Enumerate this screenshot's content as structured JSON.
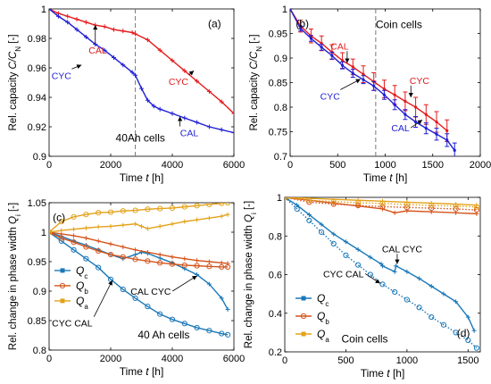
{
  "chart_data": [
    {
      "type": "line",
      "panel_label": "(a)",
      "xlabel_prefix": "Time ",
      "xlabel_var": "t",
      "xlabel_unit": " [h]",
      "ylabel_prefix": "Rel. capacity ",
      "ylabel_var": "C/C",
      "ylabel_sub": "N",
      "ylabel_unit": " [-]",
      "xlim": [
        0,
        6000
      ],
      "ylim": [
        0.9,
        1.0
      ],
      "xticks": [
        0,
        2000,
        4000,
        6000
      ],
      "yticks": [
        0.9,
        0.92,
        0.94,
        0.96,
        0.98,
        1
      ],
      "xtick_labels": [
        "0",
        "2000",
        "4000",
        "6000"
      ],
      "ytick_labels": [
        "0.9",
        "0.92",
        "0.94",
        "0.96",
        "0.98",
        "1"
      ],
      "vline_x": 2800,
      "grid": false,
      "note": "40Ah cells",
      "series": [
        {
          "name": "CAL",
          "color": "#e41a1c",
          "marker": "plus",
          "x": [
            0,
            300,
            600,
            900,
            1200,
            1500,
            1800,
            2100,
            2400,
            2700,
            2800,
            3200,
            3600,
            4000,
            4400,
            4800,
            5200,
            5600,
            6000
          ],
          "y": [
            1.0,
            0.997,
            0.995,
            0.993,
            0.991,
            0.989,
            0.988,
            0.986,
            0.985,
            0.984,
            0.983,
            0.979,
            0.972,
            0.965,
            0.958,
            0.951,
            0.944,
            0.937,
            0.929
          ]
        },
        {
          "name": "CYC",
          "color": "#1f1fd6",
          "marker": "plus",
          "x": [
            0,
            300,
            600,
            900,
            1200,
            1500,
            1800,
            2100,
            2400,
            2700,
            2800,
            3000,
            3200,
            3400,
            3600,
            4000,
            4400,
            4800,
            5200,
            5600,
            6000
          ],
          "y": [
            1.0,
            0.995,
            0.991,
            0.986,
            0.981,
            0.976,
            0.972,
            0.967,
            0.962,
            0.957,
            0.955,
            0.946,
            0.938,
            0.934,
            0.932,
            0.929,
            0.926,
            0.923,
            0.92,
            0.918,
            0.916
          ]
        }
      ],
      "annotations": [
        {
          "text": "CAL",
          "x": 1580,
          "y": 0.972,
          "to_x": 1500,
          "to_y": 0.989,
          "color": "#e41a1c"
        },
        {
          "text": "CYC",
          "x": 4200,
          "y": 0.951,
          "to_x": 4700,
          "to_y": 0.958,
          "color": "#e41a1c"
        },
        {
          "text": "CYC",
          "x": 400,
          "y": 0.955,
          "to_x": 1050,
          "to_y": 0.962,
          "color": "#1f1fd6"
        },
        {
          "text": "CAL",
          "x": 4550,
          "y": 0.916,
          "to_x": 4250,
          "to_y": 0.927,
          "color": "#1f1fd6"
        }
      ]
    },
    {
      "type": "line",
      "panel_label": "(b)",
      "xlabel_prefix": "Time ",
      "xlabel_var": "t",
      "xlabel_unit": " [h]",
      "ylabel_prefix": "Rel. capacity ",
      "ylabel_var": "C/C",
      "ylabel_sub": "N",
      "ylabel_unit": " [-]",
      "xlim": [
        0,
        2000
      ],
      "ylim": [
        0.7,
        1.0
      ],
      "xticks": [
        0,
        500,
        1000,
        1500,
        2000
      ],
      "yticks": [
        0.7,
        0.75,
        0.8,
        0.85,
        0.9,
        0.95,
        1
      ],
      "xtick_labels": [
        "0",
        "500",
        "1000",
        "1500",
        "2000"
      ],
      "ytick_labels": [
        "0.7",
        "0.75",
        "0.8",
        "0.85",
        "0.9",
        "0.95",
        "1"
      ],
      "vline_x": 900,
      "grid": false,
      "note": "Coin cells",
      "series": [
        {
          "name": "CAL",
          "color": "#e41a1c",
          "marker": "errorbar",
          "x": [
            0,
            110,
            220,
            330,
            440,
            550,
            660,
            770,
            880,
            990,
            1100,
            1210,
            1320,
            1430,
            1540,
            1650
          ],
          "y": [
            1.0,
            0.965,
            0.945,
            0.93,
            0.912,
            0.895,
            0.882,
            0.867,
            0.852,
            0.837,
            0.825,
            0.812,
            0.8,
            0.785,
            0.77,
            0.752
          ],
          "err": [
            0.0,
            0.012,
            0.014,
            0.015,
            0.015,
            0.016,
            0.016,
            0.017,
            0.018,
            0.018,
            0.019,
            0.019,
            0.02,
            0.02,
            0.021,
            0.022
          ]
        },
        {
          "name": "CYC",
          "color": "#1f1fd6",
          "marker": "errorbar",
          "x": [
            0,
            110,
            220,
            330,
            440,
            550,
            660,
            770,
            880,
            990,
            1100,
            1210,
            1320,
            1430,
            1540,
            1650,
            1730
          ],
          "y": [
            1.0,
            0.96,
            0.94,
            0.922,
            0.905,
            0.885,
            0.869,
            0.856,
            0.843,
            0.825,
            0.805,
            0.785,
            0.77,
            0.757,
            0.745,
            0.733,
            0.712
          ],
          "err": [
            0.0,
            0.005,
            0.006,
            0.006,
            0.007,
            0.007,
            0.008,
            0.008,
            0.009,
            0.009,
            0.01,
            0.01,
            0.011,
            0.011,
            0.012,
            0.013,
            0.015
          ]
        }
      ],
      "annotations": [
        {
          "text": "CAL",
          "x": 520,
          "y": 0.925,
          "to_x": 600,
          "to_y": 0.89,
          "color": "#e41a1c"
        },
        {
          "text": "CYC",
          "x": 1360,
          "y": 0.855,
          "to_x": 1270,
          "to_y": 0.82,
          "color": "#e41a1c"
        },
        {
          "text": "CYC",
          "x": 420,
          "y": 0.823,
          "to_x": 740,
          "to_y": 0.857,
          "color": "#1f1fd6"
        },
        {
          "text": "CAL",
          "x": 1160,
          "y": 0.758,
          "to_x": 1390,
          "to_y": 0.774,
          "color": "#1f1fd6"
        }
      ]
    },
    {
      "type": "line",
      "panel_label": "(c)",
      "xlabel_prefix": "Time ",
      "xlabel_var": "t",
      "xlabel_unit": " [h]",
      "ylabel_prefix": "Rel. change in phase width ",
      "ylabel_var": "Q",
      "ylabel_sub": "i",
      "ylabel_unit": " [-]",
      "xlim": [
        0,
        6000
      ],
      "ylim": [
        0.8,
        1.05
      ],
      "xticks": [
        0,
        2000,
        4000,
        6000
      ],
      "yticks": [
        0.8,
        0.85,
        0.9,
        0.95,
        1,
        1.05
      ],
      "xtick_labels": [
        "0",
        "2000",
        "4000",
        "6000"
      ],
      "ytick_labels": [
        "0.8",
        "0.85",
        "0.9",
        "0.95",
        "1",
        "1.05"
      ],
      "vline_x": null,
      "grid": false,
      "note": "40 Ah cells",
      "legend": {
        "placement": "left",
        "entries": [
          {
            "var": "Q",
            "sub": "c",
            "color": "#1a78b8",
            "marker": "square"
          },
          {
            "var": "Q",
            "sub": "b",
            "color": "#d4541b",
            "marker": "circle"
          },
          {
            "var": "Q",
            "sub": "a",
            "color": "#e3a21a",
            "marker": "square"
          }
        ]
      },
      "series": [
        {
          "name": "",
          "color": "#1a78b8",
          "marker": "circle",
          "dotted": false,
          "x": [
            0,
            400,
            800,
            1200,
            1600,
            2000,
            2400,
            2800,
            3200,
            3600,
            4000,
            4400,
            4800,
            5200,
            5600,
            5800
          ],
          "y": [
            1.0,
            0.985,
            0.97,
            0.955,
            0.94,
            0.92,
            0.903,
            0.888,
            0.874,
            0.861,
            0.852,
            0.845,
            0.838,
            0.833,
            0.828,
            0.826
          ]
        },
        {
          "name": "",
          "color": "#1a78b8",
          "marker": "plus",
          "dotted": false,
          "x": [
            0,
            400,
            800,
            1200,
            1600,
            2000,
            2400,
            2800,
            3000,
            3200,
            3600,
            4000,
            4400,
            4800,
            5200,
            5600,
            5800
          ],
          "y": [
            1.0,
            0.993,
            0.985,
            0.978,
            0.97,
            0.962,
            0.955,
            0.962,
            0.966,
            0.964,
            0.956,
            0.948,
            0.938,
            0.928,
            0.912,
            0.888,
            0.869
          ]
        },
        {
          "name": "",
          "color": "#d4541b",
          "marker": "circle",
          "dotted": false,
          "x": [
            0,
            400,
            800,
            1200,
            1600,
            2000,
            2400,
            2800,
            3200,
            3600,
            4000,
            4400,
            4800,
            5200,
            5600,
            5800
          ],
          "y": [
            1.0,
            0.99,
            0.983,
            0.975,
            0.968,
            0.962,
            0.958,
            0.954,
            0.951,
            0.948,
            0.946,
            0.944,
            0.943,
            0.942,
            0.941,
            0.941
          ]
        },
        {
          "name": "",
          "color": "#d4541b",
          "marker": "plus",
          "dotted": false,
          "x": [
            0,
            400,
            800,
            1200,
            1600,
            2000,
            2400,
            2800,
            3200,
            3600,
            4000,
            4400,
            4800,
            5200,
            5600,
            5800
          ],
          "y": [
            1.0,
            0.997,
            0.994,
            0.99,
            0.985,
            0.98,
            0.975,
            0.97,
            0.966,
            0.962,
            0.958,
            0.955,
            0.952,
            0.95,
            0.948,
            0.947
          ]
        },
        {
          "name": "",
          "color": "#e3a21a",
          "marker": "circle",
          "dotted": false,
          "x": [
            0,
            400,
            800,
            1200,
            1600,
            2000,
            2400,
            2800,
            3200,
            3600,
            4000,
            4400,
            4800,
            5200,
            5600,
            5800
          ],
          "y": [
            1.0,
            1.018,
            1.026,
            1.03,
            1.033,
            1.034,
            1.036,
            1.037,
            1.039,
            1.04,
            1.041,
            1.043,
            1.045,
            1.047,
            1.049,
            1.05
          ]
        },
        {
          "name": "",
          "color": "#e3a21a",
          "marker": "plus",
          "dotted": false,
          "x": [
            0,
            400,
            800,
            1200,
            1600,
            2000,
            2400,
            2800,
            3000,
            3200,
            3600,
            4000,
            4400,
            4800,
            5200,
            5600,
            5800
          ],
          "y": [
            1.0,
            1.003,
            1.005,
            1.007,
            1.009,
            1.01,
            1.012,
            1.014,
            1.01,
            1.006,
            1.01,
            1.014,
            1.018,
            1.021,
            1.024,
            1.027,
            1.03
          ]
        }
      ],
      "annotations": [
        {
          "text": "CYC CAL",
          "x": 750,
          "y": 0.846,
          "to_x": 2050,
          "to_y": 0.918,
          "color": "#000000"
        },
        {
          "text": "CAL CYC",
          "x": 3300,
          "y": 0.9,
          "to_x": 4800,
          "to_y": 0.926,
          "color": "#000000"
        }
      ]
    },
    {
      "type": "line",
      "panel_label": "(d)",
      "xlabel_prefix": "Time ",
      "xlabel_var": "t",
      "xlabel_unit": " [h]",
      "ylabel_prefix": "Rel. change in phase width ",
      "ylabel_var": "Q",
      "ylabel_sub": "i",
      "ylabel_unit": " [-]",
      "xlim": [
        0,
        1600
      ],
      "ylim": [
        0.2,
        1.0
      ],
      "xticks": [
        0,
        500,
        1000,
        1500
      ],
      "yticks": [
        0.2,
        0.4,
        0.6,
        0.8,
        1
      ],
      "xtick_labels": [
        "0",
        "500",
        "1000",
        "1500"
      ],
      "ytick_labels": [
        "0.2",
        "0.4",
        "0.6",
        "0.8",
        "1"
      ],
      "vline_x": null,
      "grid": false,
      "note": "Coin cells",
      "legend": {
        "placement": "bottom-left",
        "entries": [
          {
            "var": "Q",
            "sub": "c",
            "color": "#1a78b8",
            "marker": "square"
          },
          {
            "var": "Q",
            "sub": "b",
            "color": "#d4541b",
            "marker": "circle"
          },
          {
            "var": "Q",
            "sub": "a",
            "color": "#e3a21a",
            "marker": "square"
          }
        ]
      },
      "series": [
        {
          "name": "",
          "color": "#1a78b8",
          "marker": "circle",
          "dotted": true,
          "x": [
            0,
            100,
            200,
            300,
            400,
            500,
            600,
            700,
            800,
            900,
            1000,
            1100,
            1200,
            1300,
            1400,
            1500,
            1570
          ],
          "y": [
            1.0,
            0.94,
            0.88,
            0.82,
            0.76,
            0.7,
            0.65,
            0.6,
            0.55,
            0.51,
            0.47,
            0.43,
            0.38,
            0.34,
            0.3,
            0.26,
            0.22
          ]
        },
        {
          "name": "",
          "color": "#1a78b8",
          "marker": "plus",
          "dotted": false,
          "x": [
            0,
            100,
            200,
            300,
            400,
            500,
            600,
            700,
            790,
            800,
            900,
            910,
            1000,
            1100,
            1200,
            1300,
            1400,
            1500,
            1550
          ],
          "y": [
            1.0,
            0.96,
            0.91,
            0.86,
            0.81,
            0.77,
            0.73,
            0.69,
            0.655,
            0.645,
            0.615,
            0.645,
            0.615,
            0.58,
            0.54,
            0.5,
            0.46,
            0.38,
            0.31
          ]
        },
        {
          "name": "",
          "color": "#d4541b",
          "marker": "circle",
          "dotted": true,
          "x": [
            0,
            200,
            400,
            600,
            800,
            1000,
            1200,
            1400,
            1570
          ],
          "y": [
            1.0,
            0.975,
            0.965,
            0.958,
            0.952,
            0.948,
            0.944,
            0.94,
            0.935
          ]
        },
        {
          "name": "",
          "color": "#d4541b",
          "marker": "plus",
          "dotted": false,
          "x": [
            0,
            200,
            400,
            600,
            800,
            900,
            1000,
            1200,
            1400,
            1570
          ],
          "y": [
            1.0,
            0.985,
            0.97,
            0.955,
            0.94,
            0.92,
            0.93,
            0.925,
            0.92,
            0.915
          ]
        },
        {
          "name": "",
          "color": "#e3a21a",
          "marker": "circle",
          "dotted": true,
          "x": [
            0,
            200,
            400,
            600,
            800,
            1000,
            1200,
            1400,
            1570
          ],
          "y": [
            1.0,
            0.985,
            0.978,
            0.972,
            0.968,
            0.963,
            0.958,
            0.955,
            0.95
          ]
        },
        {
          "name": "",
          "color": "#e3a21a",
          "marker": "plus",
          "dotted": false,
          "x": [
            0,
            200,
            400,
            600,
            800,
            1000,
            1200,
            1400,
            1570
          ],
          "y": [
            1.0,
            0.995,
            0.99,
            0.985,
            0.98,
            0.975,
            0.97,
            0.965,
            0.96
          ]
        }
      ],
      "annotations": [
        {
          "text": "CAL CYC",
          "x": 960,
          "y": 0.735,
          "to_x": 920,
          "to_y": 0.655,
          "color": "#000000"
        },
        {
          "text": "CYC CAL",
          "x": 480,
          "y": 0.605,
          "to_x": 780,
          "to_y": 0.555,
          "color": "#000000"
        }
      ]
    }
  ]
}
